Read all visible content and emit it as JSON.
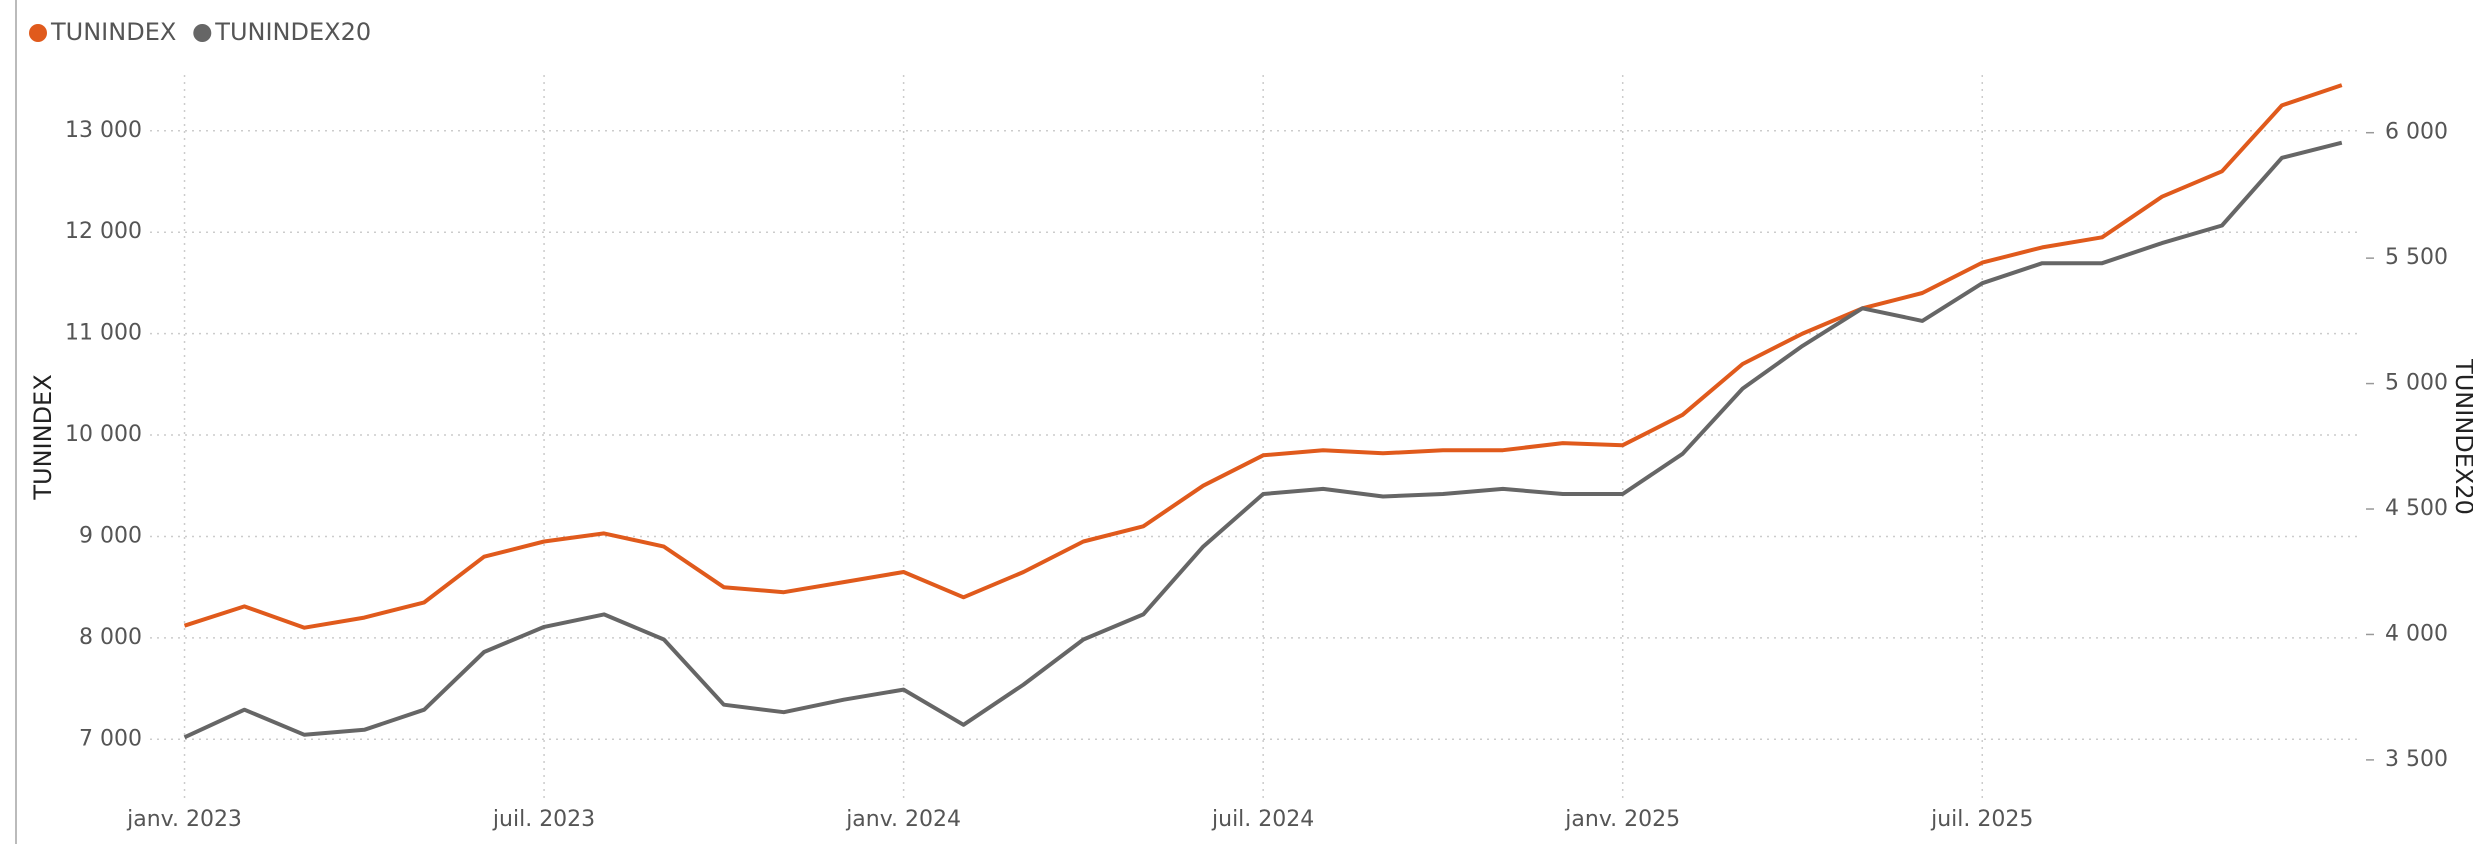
{
  "chart_data": {
    "type": "line",
    "legend": "top-left",
    "grid": true,
    "x": [
      "2023-01",
      "2023-02",
      "2023-03",
      "2023-04",
      "2023-05",
      "2023-06",
      "2023-07",
      "2023-08",
      "2023-09",
      "2023-10",
      "2023-11",
      "2023-12",
      "2024-01",
      "2024-02",
      "2024-03",
      "2024-04",
      "2024-05",
      "2024-06",
      "2024-07",
      "2024-08",
      "2024-09",
      "2024-10",
      "2024-11",
      "2024-12",
      "2025-01",
      "2025-02",
      "2025-03",
      "2025-04",
      "2025-05",
      "2025-06",
      "2025-07",
      "2025-08",
      "2025-09",
      "2025-10",
      "2025-11",
      "2025-12",
      "2026-01"
    ],
    "xlim": [
      "2022-12",
      "2026-01"
    ],
    "xticks": [
      {
        "value": "2023-01",
        "label": "janv. 2023"
      },
      {
        "value": "2023-07",
        "label": "juil. 2023"
      },
      {
        "value": "2024-01",
        "label": "janv. 2024"
      },
      {
        "value": "2024-07",
        "label": "juil. 2024"
      },
      {
        "value": "2025-01",
        "label": "janv. 2025"
      },
      {
        "value": "2025-07",
        "label": "juil. 2025"
      }
    ],
    "ylabel": "TUNINDEX",
    "y2label": "TUNINDEX20",
    "ylim": [
      6500,
      13550
    ],
    "yticks": [
      {
        "value": 7000,
        "label": "7 000"
      },
      {
        "value": 8000,
        "label": "8 000"
      },
      {
        "value": 9000,
        "label": "9 000"
      },
      {
        "value": 10000,
        "label": "10 000"
      },
      {
        "value": 11000,
        "label": "11 000"
      },
      {
        "value": 12000,
        "label": "12 000"
      },
      {
        "value": 13000,
        "label": "13 000"
      }
    ],
    "y2lim": [
      3380,
      6230
    ],
    "y2ticks": [
      {
        "value": 3500,
        "label": "3 500"
      },
      {
        "value": 4000,
        "label": "4 000"
      },
      {
        "value": 4500,
        "label": "4 500"
      },
      {
        "value": 5000,
        "label": "5 000"
      },
      {
        "value": 5500,
        "label": "5 500"
      },
      {
        "value": 6000,
        "label": "6 000"
      }
    ],
    "series": [
      {
        "name": "TUNINDEX",
        "color": "#e05a1c",
        "values": [
          8120,
          8310,
          8100,
          8200,
          8350,
          8800,
          8950,
          9030,
          8900,
          8500,
          8450,
          8550,
          8650,
          8400,
          8650,
          8950,
          9100,
          9500,
          9800,
          9850,
          9820,
          9850,
          9850,
          9920,
          9900,
          10200,
          10700,
          11000,
          11250,
          11400,
          11700,
          11850,
          11950,
          12350,
          12600,
          13250,
          13450
        ]
      },
      {
        "name": "TUNINDEX20",
        "color": "#666666",
        "axis": "y2",
        "values": [
          3590,
          3700,
          3600,
          3620,
          3700,
          3930,
          4030,
          4080,
          3980,
          3720,
          3690,
          3740,
          3780,
          3640,
          3800,
          3980,
          4080,
          4350,
          4560,
          4580,
          4550,
          4560,
          4580,
          4560,
          4560,
          4720,
          4980,
          5150,
          5300,
          5250,
          5400,
          5480,
          5480,
          5560,
          5630,
          5900,
          5960
        ]
      }
    ]
  }
}
